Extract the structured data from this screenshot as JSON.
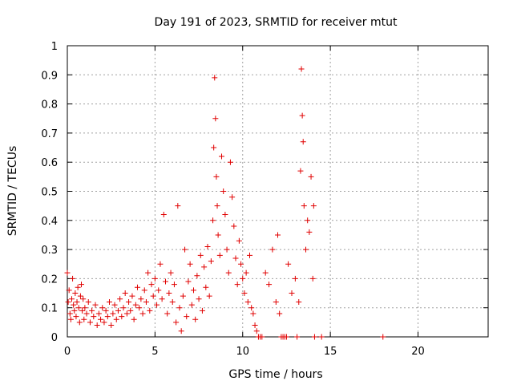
{
  "chart_data": {
    "type": "scatter",
    "title": "Day 191 of 2023, SRMTID for receiver mtut",
    "xlabel": "GPS time / hours",
    "ylabel": "SRMTID / TECUs",
    "xlim": [
      0,
      24
    ],
    "ylim": [
      0,
      1
    ],
    "xticks": [
      0,
      5,
      10,
      15,
      20
    ],
    "yticks": [
      0,
      0.1,
      0.2,
      0.3,
      0.4,
      0.5,
      0.6,
      0.7,
      0.8,
      0.9,
      1
    ],
    "xtick_labels": [
      "0",
      "5",
      "10",
      "15",
      "20"
    ],
    "ytick_labels": [
      "0",
      "0.1",
      "0.2",
      "0.3",
      "0.4",
      "0.5",
      "0.6",
      "0.7",
      "0.8",
      "0.9",
      "1"
    ],
    "grid": true,
    "marker": "+",
    "color": "#e00000",
    "series": [
      {
        "name": "SRMTID",
        "points": [
          [
            0.0,
            0.22
          ],
          [
            0.05,
            0.12
          ],
          [
            0.1,
            0.16
          ],
          [
            0.15,
            0.08
          ],
          [
            0.2,
            0.06
          ],
          [
            0.25,
            0.13
          ],
          [
            0.3,
            0.2
          ],
          [
            0.35,
            0.11
          ],
          [
            0.4,
            0.09
          ],
          [
            0.45,
            0.15
          ],
          [
            0.5,
            0.07
          ],
          [
            0.55,
            0.12
          ],
          [
            0.6,
            0.17
          ],
          [
            0.65,
            0.1
          ],
          [
            0.7,
            0.05
          ],
          [
            0.75,
            0.14
          ],
          [
            0.8,
            0.18
          ],
          [
            0.85,
            0.09
          ],
          [
            0.9,
            0.13
          ],
          [
            0.95,
            0.06
          ],
          [
            1.0,
            0.1
          ],
          [
            1.1,
            0.08
          ],
          [
            1.2,
            0.12
          ],
          [
            1.3,
            0.05
          ],
          [
            1.4,
            0.09
          ],
          [
            1.5,
            0.07
          ],
          [
            1.6,
            0.11
          ],
          [
            1.7,
            0.04
          ],
          [
            1.8,
            0.08
          ],
          [
            1.9,
            0.06
          ],
          [
            2.0,
            0.1
          ],
          [
            2.1,
            0.05
          ],
          [
            2.2,
            0.09
          ],
          [
            2.3,
            0.07
          ],
          [
            2.4,
            0.12
          ],
          [
            2.5,
            0.04
          ],
          [
            2.6,
            0.08
          ],
          [
            2.7,
            0.11
          ],
          [
            2.8,
            0.06
          ],
          [
            2.9,
            0.09
          ],
          [
            3.0,
            0.13
          ],
          [
            3.1,
            0.07
          ],
          [
            3.2,
            0.1
          ],
          [
            3.3,
            0.15
          ],
          [
            3.4,
            0.08
          ],
          [
            3.5,
            0.12
          ],
          [
            3.6,
            0.09
          ],
          [
            3.7,
            0.14
          ],
          [
            3.8,
            0.06
          ],
          [
            3.9,
            0.11
          ],
          [
            4.0,
            0.17
          ],
          [
            4.1,
            0.1
          ],
          [
            4.2,
            0.13
          ],
          [
            4.3,
            0.08
          ],
          [
            4.4,
            0.16
          ],
          [
            4.5,
            0.12
          ],
          [
            4.6,
            0.22
          ],
          [
            4.7,
            0.09
          ],
          [
            4.8,
            0.18
          ],
          [
            4.9,
            0.14
          ],
          [
            5.0,
            0.2
          ],
          [
            5.1,
            0.11
          ],
          [
            5.2,
            0.16
          ],
          [
            5.3,
            0.25
          ],
          [
            5.4,
            0.13
          ],
          [
            5.5,
            0.42
          ],
          [
            5.6,
            0.19
          ],
          [
            5.7,
            0.08
          ],
          [
            5.8,
            0.15
          ],
          [
            5.9,
            0.22
          ],
          [
            6.0,
            0.12
          ],
          [
            6.1,
            0.18
          ],
          [
            6.2,
            0.05
          ],
          [
            6.3,
            0.45
          ],
          [
            6.4,
            0.1
          ],
          [
            6.5,
            0.02
          ],
          [
            6.6,
            0.14
          ],
          [
            6.7,
            0.3
          ],
          [
            6.8,
            0.07
          ],
          [
            6.9,
            0.19
          ],
          [
            7.0,
            0.25
          ],
          [
            7.1,
            0.11
          ],
          [
            7.2,
            0.16
          ],
          [
            7.3,
            0.06
          ],
          [
            7.4,
            0.21
          ],
          [
            7.5,
            0.13
          ],
          [
            7.6,
            0.28
          ],
          [
            7.7,
            0.09
          ],
          [
            7.8,
            0.24
          ],
          [
            7.9,
            0.17
          ],
          [
            8.0,
            0.31
          ],
          [
            8.1,
            0.14
          ],
          [
            8.2,
            0.26
          ],
          [
            8.3,
            0.4
          ],
          [
            8.35,
            0.65
          ],
          [
            8.4,
            0.89
          ],
          [
            8.45,
            0.75
          ],
          [
            8.5,
            0.55
          ],
          [
            8.55,
            0.45
          ],
          [
            8.6,
            0.35
          ],
          [
            8.7,
            0.28
          ],
          [
            8.8,
            0.62
          ],
          [
            8.9,
            0.5
          ],
          [
            9.0,
            0.42
          ],
          [
            9.1,
            0.3
          ],
          [
            9.2,
            0.22
          ],
          [
            9.3,
            0.6
          ],
          [
            9.4,
            0.48
          ],
          [
            9.5,
            0.38
          ],
          [
            9.6,
            0.27
          ],
          [
            9.7,
            0.18
          ],
          [
            9.8,
            0.33
          ],
          [
            9.9,
            0.25
          ],
          [
            10.0,
            0.2
          ],
          [
            10.1,
            0.15
          ],
          [
            10.2,
            0.22
          ],
          [
            10.3,
            0.12
          ],
          [
            10.4,
            0.28
          ],
          [
            10.5,
            0.1
          ],
          [
            10.6,
            0.08
          ],
          [
            10.7,
            0.04
          ],
          [
            10.8,
            0.02
          ],
          [
            10.9,
            0.0
          ],
          [
            11.0,
            0.0
          ],
          [
            11.1,
            0.0
          ],
          [
            11.3,
            0.22
          ],
          [
            11.5,
            0.18
          ],
          [
            11.7,
            0.3
          ],
          [
            11.9,
            0.12
          ],
          [
            12.0,
            0.35
          ],
          [
            12.1,
            0.08
          ],
          [
            12.2,
            0.0
          ],
          [
            12.3,
            0.0
          ],
          [
            12.4,
            0.0
          ],
          [
            12.5,
            0.0
          ],
          [
            12.6,
            0.25
          ],
          [
            12.8,
            0.15
          ],
          [
            13.0,
            0.2
          ],
          [
            13.1,
            0.0
          ],
          [
            13.2,
            0.12
          ],
          [
            13.3,
            0.57
          ],
          [
            13.35,
            0.92
          ],
          [
            13.4,
            0.76
          ],
          [
            13.45,
            0.67
          ],
          [
            13.5,
            0.45
          ],
          [
            13.6,
            0.3
          ],
          [
            13.7,
            0.4
          ],
          [
            13.8,
            0.36
          ],
          [
            13.9,
            0.55
          ],
          [
            14.0,
            0.2
          ],
          [
            14.05,
            0.45
          ],
          [
            14.1,
            0.0
          ],
          [
            14.5,
            0.0
          ],
          [
            18.0,
            0.0
          ]
        ]
      }
    ]
  }
}
